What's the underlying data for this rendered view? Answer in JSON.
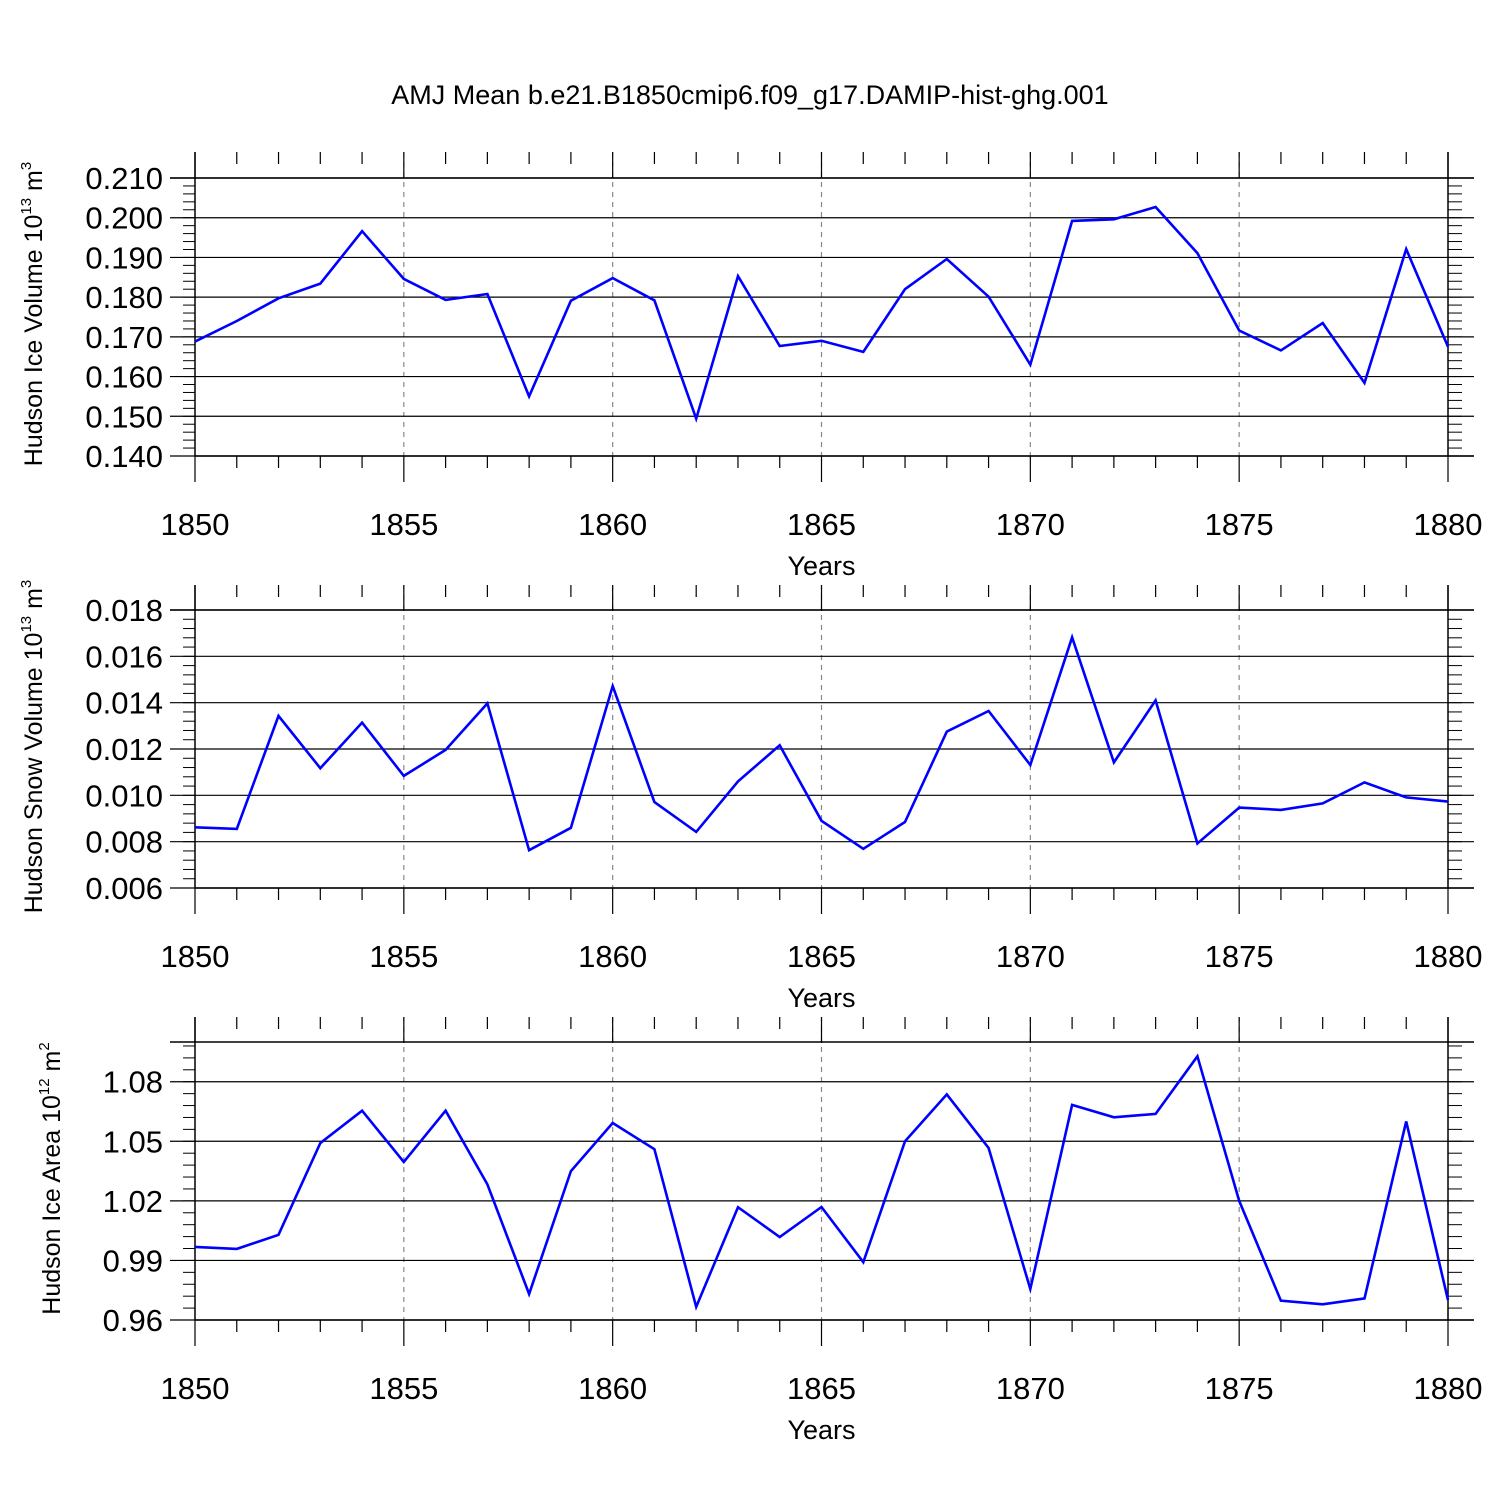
{
  "title": "AMJ Mean b.e21.B1850cmip6.f09_g17.DAMIP-hist-ghg.001",
  "chart_data": [
    {
      "type": "line",
      "title": "",
      "xlabel": "Years",
      "ylabel": {
        "main": "Hudson Ice Volume 10",
        "exp": "13",
        "unit": " m",
        "unit_exp": "3"
      },
      "xlim": [
        1850,
        1880
      ],
      "ylim": [
        0.14,
        0.21
      ],
      "xticks": [
        1850,
        1855,
        1860,
        1865,
        1870,
        1875,
        1880
      ],
      "xtick_labels": [
        "1850",
        "1855",
        "1860",
        "1865",
        "1870",
        "1875",
        "1880"
      ],
      "yticks": [
        0.14,
        0.15,
        0.16,
        0.17,
        0.18,
        0.19,
        0.2,
        0.21
      ],
      "ytick_labels": [
        "0.140",
        "0.150",
        "0.160",
        "0.170",
        "0.180",
        "0.190",
        "0.200",
        "0.210"
      ],
      "y_minor_step": 0.002,
      "grid": "vertical-dashed",
      "color": "#0000ff",
      "x": [
        1850,
        1851,
        1852,
        1853,
        1854,
        1855,
        1856,
        1857,
        1858,
        1859,
        1860,
        1861,
        1862,
        1863,
        1864,
        1865,
        1866,
        1867,
        1868,
        1869,
        1870,
        1871,
        1872,
        1873,
        1874,
        1875,
        1876,
        1877,
        1878,
        1879,
        1880
      ],
      "values": [
        0.1688,
        0.174,
        0.1797,
        0.1834,
        0.1966,
        0.1846,
        0.1793,
        0.1808,
        0.155,
        0.1791,
        0.1848,
        0.1792,
        0.1494,
        0.1853,
        0.1677,
        0.169,
        0.1662,
        0.182,
        0.1896,
        0.1801,
        0.163,
        0.1992,
        0.1996,
        0.2027,
        0.1911,
        0.1716,
        0.1666,
        0.1735,
        0.1584,
        0.1921,
        0.1675
      ]
    },
    {
      "type": "line",
      "title": "",
      "xlabel": "Years",
      "ylabel": {
        "main": "Hudson Snow Volume 10",
        "exp": "13",
        "unit": " m",
        "unit_exp": "3"
      },
      "xlim": [
        1850,
        1880
      ],
      "ylim": [
        0.006,
        0.018
      ],
      "xticks": [
        1850,
        1855,
        1860,
        1865,
        1870,
        1875,
        1880
      ],
      "xtick_labels": [
        "1850",
        "1855",
        "1860",
        "1865",
        "1870",
        "1875",
        "1880"
      ],
      "yticks": [
        0.006,
        0.008,
        0.01,
        0.012,
        0.014,
        0.016,
        0.018
      ],
      "ytick_labels": [
        "0.006",
        "0.008",
        "0.010",
        "0.012",
        "0.014",
        "0.016",
        "0.018"
      ],
      "y_minor_step": 0.0004,
      "grid": "vertical-dashed",
      "color": "#0000ff",
      "x": [
        1850,
        1851,
        1852,
        1853,
        1854,
        1855,
        1856,
        1857,
        1858,
        1859,
        1860,
        1861,
        1862,
        1863,
        1864,
        1865,
        1866,
        1867,
        1868,
        1869,
        1870,
        1871,
        1872,
        1873,
        1874,
        1875,
        1876,
        1877,
        1878,
        1879,
        1880
      ],
      "values": [
        0.00862,
        0.00855,
        0.01343,
        0.01117,
        0.01314,
        0.01084,
        0.01196,
        0.01397,
        0.00763,
        0.0086,
        0.01472,
        0.00971,
        0.00842,
        0.0106,
        0.01216,
        0.0089,
        0.00769,
        0.00885,
        0.01275,
        0.01364,
        0.01131,
        0.01682,
        0.01142,
        0.0141,
        0.00792,
        0.00947,
        0.00937,
        0.00965,
        0.01056,
        0.00991,
        0.00973
      ]
    },
    {
      "type": "line",
      "title": "",
      "xlabel": "Years",
      "ylabel": {
        "main": "Hudson Ice Area 10",
        "exp": "12",
        "unit": " m",
        "unit_exp": "2"
      },
      "xlim": [
        1850,
        1880
      ],
      "ylim": [
        0.96,
        1.1
      ],
      "xticks": [
        1850,
        1855,
        1860,
        1865,
        1870,
        1875,
        1880
      ],
      "xtick_labels": [
        "1850",
        "1855",
        "1860",
        "1865",
        "1870",
        "1875",
        "1880"
      ],
      "yticks": [
        0.96,
        0.99,
        1.02,
        1.05,
        1.08
      ],
      "ytick_labels": [
        "0.96",
        "0.99",
        "1.02",
        "1.05",
        "1.08"
      ],
      "y_minor_step": 0.006,
      "grid": "vertical-dashed",
      "color": "#0000ff",
      "x": [
        1850,
        1851,
        1852,
        1853,
        1854,
        1855,
        1856,
        1857,
        1858,
        1859,
        1860,
        1861,
        1862,
        1863,
        1864,
        1865,
        1866,
        1867,
        1868,
        1869,
        1870,
        1871,
        1872,
        1873,
        1874,
        1875,
        1876,
        1877,
        1878,
        1879,
        1880
      ],
      "values": [
        0.9968,
        0.9958,
        1.0029,
        1.0491,
        1.0654,
        1.0396,
        1.0654,
        1.0283,
        0.9731,
        1.035,
        1.0592,
        1.046,
        0.9666,
        1.0168,
        1.0018,
        1.0169,
        0.9891,
        1.05,
        1.0736,
        1.0466,
        0.9756,
        1.0683,
        1.0621,
        1.0638,
        1.0928,
        1.02,
        0.9697,
        0.9679,
        0.9709,
        1.06,
        0.97
      ]
    }
  ]
}
